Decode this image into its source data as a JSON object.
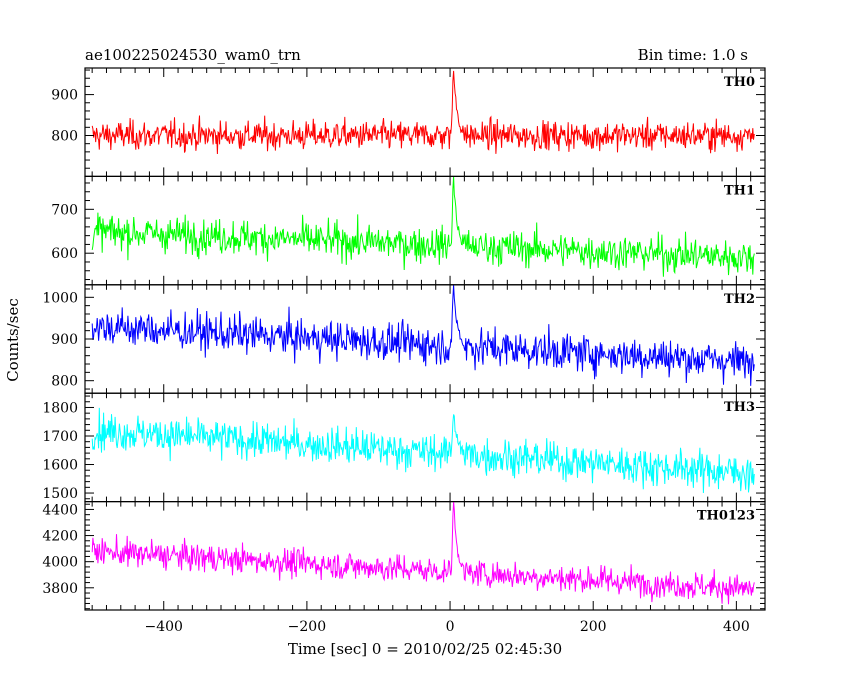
{
  "header": {
    "title": "ae100225024530_wam0_trn",
    "bin_time": "Bin time: 1.0 s"
  },
  "axes": {
    "ylabel": "Counts/sec",
    "xlabel": "Time [sec] 0 = 2010/02/25 02:45:30"
  },
  "chart_data": {
    "type": "line",
    "title": "ae100225024530_wam0_trn",
    "subtitle": "Bin time: 1.0 s",
    "xlabel": "Time [sec] 0 = 2010/02/25 02:45:30",
    "ylabel": "Counts/sec",
    "xlim": [
      -510,
      440
    ],
    "x_ticks": [
      -400,
      -200,
      0,
      200,
      400
    ],
    "x_range_data": [
      -500,
      425
    ],
    "burst_time": 5,
    "grid": false,
    "panels": [
      {
        "name": "TH0",
        "color": "#ff0000",
        "ylim": [
          700,
          965
        ],
        "y_ticks": [
          800,
          900
        ],
        "mean_start": 800,
        "mean_end": 800,
        "noise": 25,
        "peak": 965
      },
      {
        "name": "TH1",
        "color": "#00ff00",
        "ylim": [
          528,
          775
        ],
        "y_ticks": [
          600,
          700
        ],
        "mean_start": 650,
        "mean_end": 590,
        "noise": 28,
        "peak": 775
      },
      {
        "name": "TH2",
        "color": "#0000ff",
        "ylim": [
          770,
          1030
        ],
        "y_ticks": [
          800,
          900,
          1000
        ],
        "mean_start": 930,
        "mean_end": 845,
        "noise": 32,
        "peak": 1030
      },
      {
        "name": "TH3",
        "color": "#00ffff",
        "ylim": [
          1470,
          1850
        ],
        "y_ticks": [
          1500,
          1600,
          1700,
          1800
        ],
        "mean_start": 1720,
        "mean_end": 1570,
        "noise": 45,
        "peak": 1790
      },
      {
        "name": "TH0123",
        "color": "#ff00ff",
        "ylim": [
          3630,
          4460
        ],
        "y_ticks": [
          3800,
          4000,
          4200,
          4400
        ],
        "mean_start": 4080,
        "mean_end": 3790,
        "noise": 75,
        "peak": 4460
      }
    ]
  }
}
